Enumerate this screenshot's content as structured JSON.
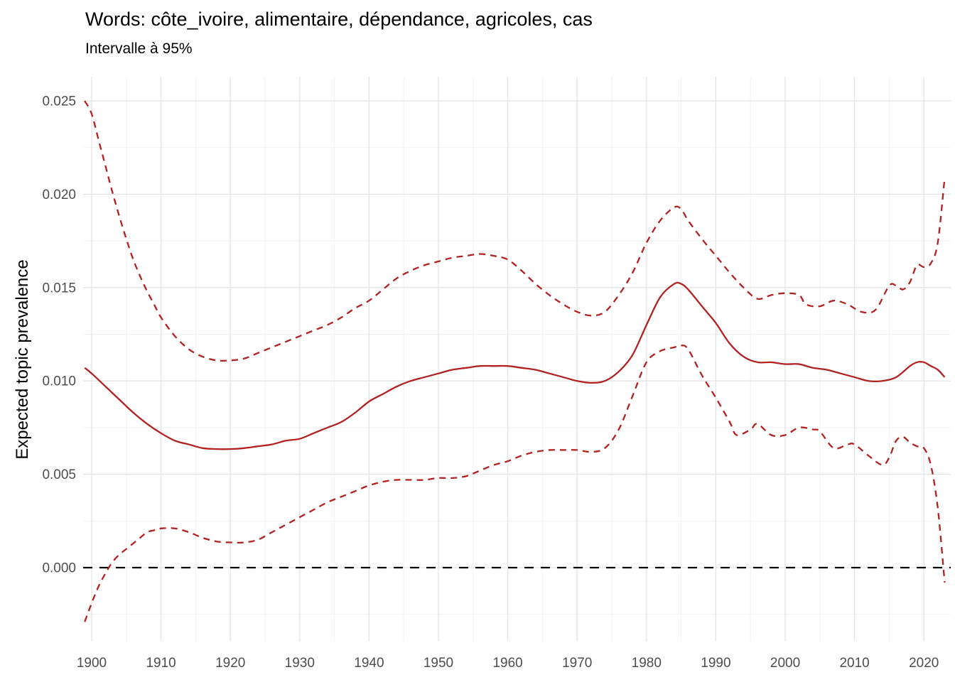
{
  "header": {
    "title": "Words: côte_ivoire, alimentaire, dépendance, agricoles, cas",
    "subtitle": "Intervalle à 95%"
  },
  "colors": {
    "series_red": "#B22222",
    "zero_line_black": "#000000",
    "grid_major": "#E4E4E4",
    "grid_minor": "#F2F2F2",
    "tick_text": "#4D4D4D",
    "title_text": "#000000",
    "background": "#FFFFFF"
  },
  "chart_data": {
    "type": "line",
    "title": "Words: côte_ivoire, alimentaire, dépendance, agricoles, cas",
    "subtitle": "Intervalle à 95%",
    "xlabel": "",
    "ylabel": "Expected topic prevalence",
    "grid": true,
    "legend": false,
    "xlim": [
      1898.77,
      2023.87
    ],
    "ylim": [
      -0.003957,
      0.026294
    ],
    "x_ticks": [
      1900,
      1910,
      1920,
      1930,
      1940,
      1950,
      1960,
      1970,
      1980,
      1990,
      2000,
      2010,
      2020
    ],
    "x_tick_labels": [
      "1900",
      "1910",
      "1920",
      "1930",
      "1940",
      "1950",
      "1960",
      "1970",
      "1980",
      "1990",
      "2000",
      "2010",
      "2020"
    ],
    "x_minor_ticks": [
      1905,
      1915,
      1925,
      1935,
      1945,
      1955,
      1965,
      1975,
      1985,
      1995,
      2005,
      2015
    ],
    "y_ticks": [
      0.0,
      0.005,
      0.01,
      0.015,
      0.02,
      0.025
    ],
    "y_tick_labels": [
      "0.000",
      "0.005",
      "0.010",
      "0.015",
      "0.020",
      "0.025"
    ],
    "y_minor_ticks": [
      -0.0025,
      0.0025,
      0.0075,
      0.0125,
      0.0175,
      0.0225
    ],
    "reference_line_y": 0,
    "series": [
      {
        "name": "expected_topic_prevalence_mean",
        "style": "solid",
        "color": "#B22222",
        "points": [
          [
            1899,
            0.0107
          ],
          [
            1900,
            0.0104
          ],
          [
            1902,
            0.0097
          ],
          [
            1904,
            0.009
          ],
          [
            1906,
            0.0083
          ],
          [
            1908,
            0.0077
          ],
          [
            1910,
            0.0072
          ],
          [
            1912,
            0.0068
          ],
          [
            1914,
            0.0066
          ],
          [
            1916,
            0.0064
          ],
          [
            1918,
            0.00635
          ],
          [
            1920,
            0.00635
          ],
          [
            1922,
            0.0064
          ],
          [
            1924,
            0.0065
          ],
          [
            1926,
            0.0066
          ],
          [
            1928,
            0.0068
          ],
          [
            1930,
            0.0069
          ],
          [
            1932,
            0.0072
          ],
          [
            1934,
            0.0075
          ],
          [
            1936,
            0.0078
          ],
          [
            1938,
            0.0083
          ],
          [
            1940,
            0.0089
          ],
          [
            1942,
            0.0093
          ],
          [
            1944,
            0.0097
          ],
          [
            1946,
            0.01
          ],
          [
            1948,
            0.0102
          ],
          [
            1950,
            0.0104
          ],
          [
            1952,
            0.0106
          ],
          [
            1954,
            0.0107
          ],
          [
            1956,
            0.0108
          ],
          [
            1958,
            0.0108
          ],
          [
            1960,
            0.0108
          ],
          [
            1962,
            0.0107
          ],
          [
            1964,
            0.0106
          ],
          [
            1966,
            0.0104
          ],
          [
            1968,
            0.0102
          ],
          [
            1970,
            0.01
          ],
          [
            1972,
            0.0099
          ],
          [
            1974,
            0.01
          ],
          [
            1976,
            0.0105
          ],
          [
            1978,
            0.0114
          ],
          [
            1980,
            0.013
          ],
          [
            1982,
            0.0145
          ],
          [
            1984,
            0.0152
          ],
          [
            1985,
            0.0152
          ],
          [
            1986,
            0.0149
          ],
          [
            1988,
            0.014
          ],
          [
            1990,
            0.0131
          ],
          [
            1992,
            0.012
          ],
          [
            1994,
            0.0113
          ],
          [
            1996,
            0.011
          ],
          [
            1998,
            0.011
          ],
          [
            2000,
            0.0109
          ],
          [
            2002,
            0.0109
          ],
          [
            2004,
            0.0107
          ],
          [
            2006,
            0.0106
          ],
          [
            2008,
            0.0104
          ],
          [
            2010,
            0.0102
          ],
          [
            2012,
            0.01
          ],
          [
            2014,
            0.01
          ],
          [
            2016,
            0.0102
          ],
          [
            2018,
            0.0108
          ],
          [
            2019,
            0.011
          ],
          [
            2020,
            0.011
          ],
          [
            2021,
            0.0108
          ],
          [
            2022,
            0.0106
          ],
          [
            2023,
            0.0102
          ]
        ]
      },
      {
        "name": "ci95_upper",
        "style": "dashed",
        "color": "#B22222",
        "points": [
          [
            1899,
            0.025
          ],
          [
            1900,
            0.0243
          ],
          [
            1901,
            0.0229
          ],
          [
            1902,
            0.0215
          ],
          [
            1903,
            0.0201
          ],
          [
            1904,
            0.0188
          ],
          [
            1905,
            0.0176
          ],
          [
            1906,
            0.0165
          ],
          [
            1907,
            0.0156
          ],
          [
            1908,
            0.0148
          ],
          [
            1909,
            0.0141
          ],
          [
            1910,
            0.0134
          ],
          [
            1912,
            0.0124
          ],
          [
            1914,
            0.0117
          ],
          [
            1916,
            0.0113
          ],
          [
            1918,
            0.0111
          ],
          [
            1920,
            0.0111
          ],
          [
            1922,
            0.0112
          ],
          [
            1924,
            0.0115
          ],
          [
            1926,
            0.0118
          ],
          [
            1928,
            0.0121
          ],
          [
            1930,
            0.0124
          ],
          [
            1932,
            0.0127
          ],
          [
            1934,
            0.013
          ],
          [
            1936,
            0.0134
          ],
          [
            1938,
            0.0139
          ],
          [
            1940,
            0.0143
          ],
          [
            1942,
            0.0149
          ],
          [
            1944,
            0.0155
          ],
          [
            1946,
            0.0159
          ],
          [
            1948,
            0.0162
          ],
          [
            1950,
            0.0164
          ],
          [
            1952,
            0.0166
          ],
          [
            1954,
            0.0167
          ],
          [
            1956,
            0.0168
          ],
          [
            1958,
            0.0167
          ],
          [
            1960,
            0.0165
          ],
          [
            1962,
            0.0159
          ],
          [
            1964,
            0.0152
          ],
          [
            1966,
            0.0146
          ],
          [
            1968,
            0.0141
          ],
          [
            1970,
            0.0137
          ],
          [
            1972,
            0.0135
          ],
          [
            1974,
            0.0137
          ],
          [
            1976,
            0.0146
          ],
          [
            1978,
            0.0158
          ],
          [
            1980,
            0.0174
          ],
          [
            1982,
            0.0186
          ],
          [
            1984,
            0.0193
          ],
          [
            1985,
            0.0192
          ],
          [
            1986,
            0.0186
          ],
          [
            1988,
            0.0176
          ],
          [
            1990,
            0.0167
          ],
          [
            1992,
            0.0158
          ],
          [
            1994,
            0.015
          ],
          [
            1996,
            0.0144
          ],
          [
            1998,
            0.0146
          ],
          [
            2000,
            0.0147
          ],
          [
            2002,
            0.0146
          ],
          [
            2003,
            0.0141
          ],
          [
            2005,
            0.014
          ],
          [
            2007,
            0.0143
          ],
          [
            2009,
            0.0141
          ],
          [
            2011,
            0.0137
          ],
          [
            2013,
            0.0138
          ],
          [
            2015,
            0.0151
          ],
          [
            2016,
            0.0151
          ],
          [
            2017,
            0.0149
          ],
          [
            2018,
            0.0153
          ],
          [
            2019,
            0.0162
          ],
          [
            2020,
            0.0161
          ],
          [
            2021,
            0.0163
          ],
          [
            2022,
            0.0174
          ],
          [
            2023,
            0.0209
          ]
        ]
      },
      {
        "name": "ci95_lower",
        "style": "dashed",
        "color": "#B22222",
        "points": [
          [
            1899,
            -0.0029
          ],
          [
            1900,
            -0.0019
          ],
          [
            1901,
            -0.001
          ],
          [
            1902,
            -0.0003
          ],
          [
            1903,
            0.0003
          ],
          [
            1904,
            0.0007
          ],
          [
            1905,
            0.001
          ],
          [
            1906,
            0.0013
          ],
          [
            1907,
            0.0016
          ],
          [
            1908,
            0.0019
          ],
          [
            1909,
            0.002
          ],
          [
            1910,
            0.0021
          ],
          [
            1912,
            0.0021
          ],
          [
            1914,
            0.0019
          ],
          [
            1916,
            0.0016
          ],
          [
            1918,
            0.0014
          ],
          [
            1920,
            0.00135
          ],
          [
            1922,
            0.00135
          ],
          [
            1924,
            0.0015
          ],
          [
            1926,
            0.0019
          ],
          [
            1928,
            0.0023
          ],
          [
            1930,
            0.0027
          ],
          [
            1932,
            0.0031
          ],
          [
            1934,
            0.0035
          ],
          [
            1936,
            0.0038
          ],
          [
            1938,
            0.0041
          ],
          [
            1940,
            0.0044
          ],
          [
            1942,
            0.0046
          ],
          [
            1944,
            0.0047
          ],
          [
            1946,
            0.0047
          ],
          [
            1948,
            0.0047
          ],
          [
            1950,
            0.0048
          ],
          [
            1952,
            0.0048
          ],
          [
            1954,
            0.0049
          ],
          [
            1956,
            0.0052
          ],
          [
            1958,
            0.0055
          ],
          [
            1960,
            0.0057
          ],
          [
            1962,
            0.006
          ],
          [
            1964,
            0.0062
          ],
          [
            1966,
            0.0063
          ],
          [
            1968,
            0.0063
          ],
          [
            1970,
            0.0063
          ],
          [
            1972,
            0.0062
          ],
          [
            1974,
            0.0064
          ],
          [
            1976,
            0.0074
          ],
          [
            1978,
            0.0092
          ],
          [
            1980,
            0.011
          ],
          [
            1982,
            0.0116
          ],
          [
            1984,
            0.0118
          ],
          [
            1985,
            0.0119
          ],
          [
            1986,
            0.0117
          ],
          [
            1988,
            0.0103
          ],
          [
            1990,
            0.0091
          ],
          [
            1992,
            0.0078
          ],
          [
            1993,
            0.0071
          ],
          [
            1995,
            0.0074
          ],
          [
            1996,
            0.0077
          ],
          [
            1998,
            0.0071
          ],
          [
            2000,
            0.0071
          ],
          [
            2002,
            0.0075
          ],
          [
            2004,
            0.0074
          ],
          [
            2005,
            0.0073
          ],
          [
            2007,
            0.0064
          ],
          [
            2009,
            0.0066
          ],
          [
            2010,
            0.0066
          ],
          [
            2012,
            0.006
          ],
          [
            2014,
            0.0055
          ],
          [
            2015,
            0.0059
          ],
          [
            2016,
            0.0068
          ],
          [
            2017,
            0.007
          ],
          [
            2018,
            0.0067
          ],
          [
            2019,
            0.0065
          ],
          [
            2020,
            0.0064
          ],
          [
            2021,
            0.0055
          ],
          [
            2022,
            0.0032
          ],
          [
            2023,
            -0.0008
          ]
        ]
      }
    ]
  }
}
